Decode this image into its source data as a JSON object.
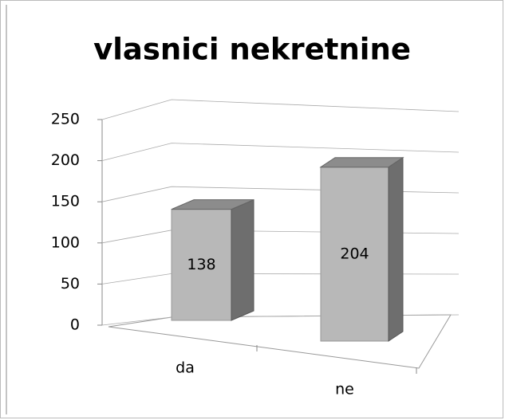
{
  "chart_data": {
    "type": "bar",
    "title": "vlasnici nekretnine",
    "categories": [
      "da",
      "ne"
    ],
    "values": [
      138,
      204
    ],
    "color": "#b8b8b8",
    "ylim": [
      0,
      250
    ],
    "yticks": [
      0,
      50,
      100,
      150,
      200,
      250
    ],
    "grid": true
  }
}
